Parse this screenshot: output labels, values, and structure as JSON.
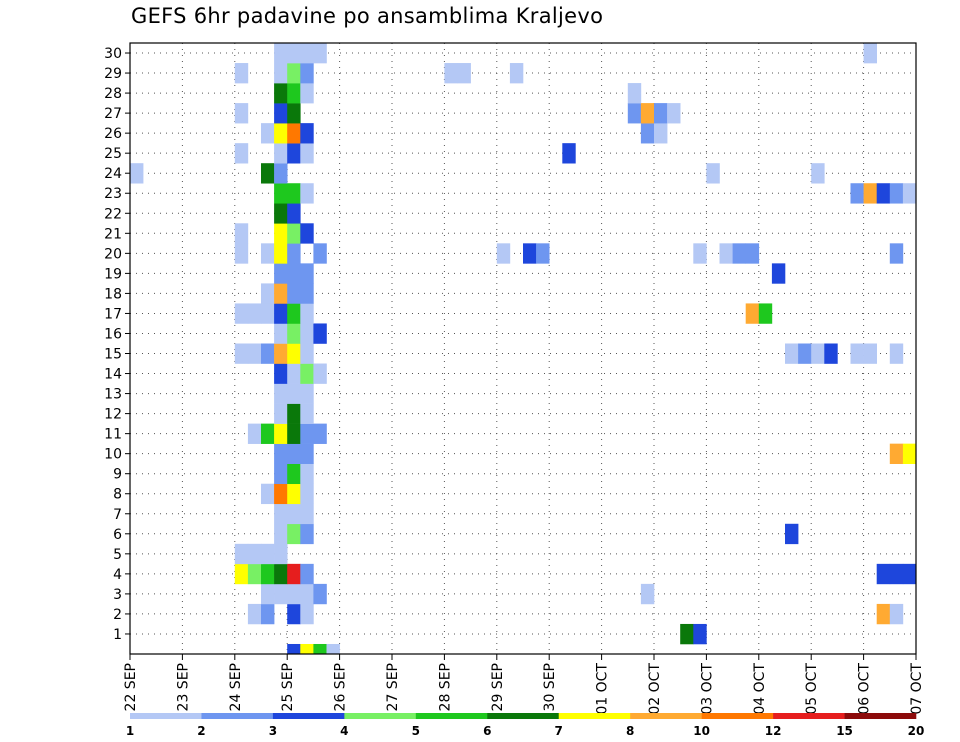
{
  "chart_data": {
    "type": "heatmap",
    "title": "GEFS 6hr padavine po ansamblima Kraljevo",
    "y_ticks": [
      "1",
      "2",
      "3",
      "4",
      "5",
      "6",
      "7",
      "8",
      "9",
      "10",
      "11",
      "12",
      "13",
      "14",
      "15",
      "16",
      "17",
      "18",
      "19",
      "20",
      "21",
      "22",
      "23",
      "24",
      "25",
      "26",
      "27",
      "28",
      "29",
      "30"
    ],
    "x_ticks": [
      "22 SEP",
      "23 SEP",
      "24 SEP",
      "25 SEP",
      "26 SEP",
      "27 SEP",
      "28 SEP",
      "29 SEP",
      "30 SEP",
      "01 OCT",
      "02 OCT",
      "03 OCT",
      "04 OCT",
      "05 OCT",
      "06 OCT",
      "07 OCT"
    ],
    "color_levels": [
      "1",
      "2",
      "3",
      "4",
      "5",
      "6",
      "7",
      "8",
      "10",
      "12",
      "15",
      "20"
    ],
    "palette": [
      "#b4c8f5",
      "#6e96f0",
      "#1e46dc",
      "#78f064",
      "#1ec81e",
      "#0a780a",
      "#ffff00",
      "#ffaa32",
      "#ff7800",
      "#e61e1e",
      "#8c0a0a"
    ],
    "grid": true,
    "steps_per_day": 4,
    "cells": [
      [
        3,
        0,
        1
      ],
      [
        3,
        0,
        6
      ],
      [
        3,
        1,
        2
      ],
      [
        3,
        1,
        3
      ],
      [
        3,
        2,
        2
      ],
      [
        3,
        2,
        1
      ],
      [
        3,
        2,
        1
      ],
      [
        3,
        3,
        2
      ],
      [
        3,
        3,
        2
      ],
      [
        3,
        4,
        1
      ],
      [
        2,
        0,
        7
      ],
      [
        2,
        1,
        3
      ],
      [
        2,
        2,
        5
      ],
      [
        2,
        3,
        6
      ],
      [
        3,
        0,
        6
      ],
      [
        3,
        1,
        10
      ],
      [
        3,
        2,
        2
      ],
      [
        2,
        2,
        1
      ],
      [
        2,
        3,
        1
      ],
      [
        3,
        0,
        1
      ],
      [
        3,
        1,
        1
      ],
      [
        3,
        2,
        1
      ],
      [
        3,
        0,
        2
      ],
      [
        3,
        1,
        4
      ],
      [
        3,
        2,
        2
      ],
      [
        3,
        0,
        2
      ],
      [
        3,
        1,
        1
      ],
      [
        3,
        2,
        1
      ],
      [
        3,
        3,
        1
      ],
      [
        3,
        0,
        9
      ],
      [
        3,
        1,
        7
      ],
      [
        3,
        2,
        1
      ],
      [
        3,
        0,
        2
      ],
      [
        3,
        1,
        5
      ],
      [
        3,
        2,
        1
      ],
      [
        3,
        1,
        2
      ],
      [
        3,
        2,
        2
      ],
      [
        2,
        3,
        1
      ],
      [
        3,
        0,
        5
      ],
      [
        3,
        1,
        7
      ],
      [
        3,
        2,
        2
      ],
      [
        3,
        0,
        1
      ],
      [
        3,
        1,
        6
      ],
      [
        3,
        0,
        1
      ],
      [
        3,
        1,
        1
      ],
      [
        3,
        2,
        4
      ],
      [
        3,
        3,
        1
      ],
      [
        2,
        3,
        3
      ],
      [
        3,
        0,
        1
      ],
      [
        3,
        1,
        1
      ],
      [
        3,
        2,
        4
      ],
      [
        3,
        3,
        1
      ],
      [
        2,
        2,
        1
      ],
      [
        2,
        3,
        1
      ],
      [
        3,
        0,
        2
      ],
      [
        3,
        1,
        8
      ],
      [
        3,
        2,
        7
      ],
      [
        3,
        3,
        1
      ],
      [
        3,
        0,
        4
      ],
      [
        3,
        1,
        1
      ],
      [
        3,
        2,
        3
      ],
      [
        2,
        0,
        1
      ],
      [
        2,
        1,
        1
      ],
      [
        2,
        2,
        1
      ],
      [
        2,
        3,
        1
      ],
      [
        3,
        0,
        3
      ],
      [
        3,
        1,
        5
      ],
      [
        3,
        2,
        1
      ],
      [
        2,
        3,
        1
      ],
      [
        3,
        0,
        8
      ],
      [
        3,
        1,
        2
      ],
      [
        3,
        2,
        2
      ],
      [
        3,
        0,
        2
      ],
      [
        3,
        1,
        2
      ],
      [
        3,
        2,
        2
      ],
      [
        2,
        0,
        1
      ],
      [
        2,
        2,
        1
      ],
      [
        3,
        0,
        7
      ],
      [
        3,
        1,
        1
      ],
      [
        3,
        2,
        1
      ],
      [
        3,
        3,
        2
      ],
      [
        3,
        0,
        7
      ],
      [
        3,
        1,
        4
      ],
      [
        3,
        2,
        3
      ],
      [
        3,
        0,
        6
      ],
      [
        3,
        1,
        3
      ],
      [
        3,
        0,
        5
      ],
      [
        3,
        1,
        5
      ],
      [
        3,
        2,
        1
      ],
      [
        2,
        0,
        1
      ],
      [
        0,
        0,
        1
      ],
      [
        2,
        3,
        6
      ],
      [
        3,
        0,
        2
      ],
      [
        2,
        0,
        1
      ],
      [
        3,
        0,
        1
      ],
      [
        3,
        1,
        3
      ],
      [
        3,
        2,
        1
      ],
      [
        2,
        2,
        1
      ],
      [
        2,
        3,
        1
      ],
      [
        3,
        0,
        7
      ],
      [
        3,
        1,
        8
      ],
      [
        3,
        2,
        3
      ],
      [
        2,
        0,
        1
      ],
      [
        3,
        0,
        3
      ],
      [
        3,
        1,
        6
      ],
      [
        3,
        2,
        1
      ],
      [
        3,
        0,
        6
      ],
      [
        3,
        1,
        5
      ],
      [
        3,
        2,
        1
      ],
      [
        2,
        0,
        1
      ],
      [
        2,
        3,
        1
      ],
      [
        3,
        0,
        5
      ],
      [
        3,
        1,
        5
      ],
      [
        3,
        2,
        2
      ],
      [
        2,
        3,
        1
      ],
      [
        3,
        0,
        1
      ],
      [
        3,
        1,
        1
      ],
      [
        3,
        2,
        1
      ],
      [
        3,
        3,
        1
      ]
    ]
  }
}
